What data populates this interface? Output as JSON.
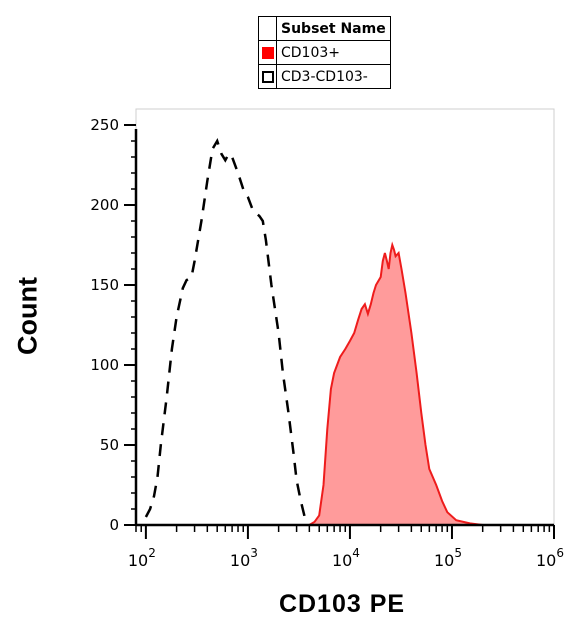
{
  "chart_data": {
    "type": "area",
    "xlabel": "CD103 PE",
    "ylabel": "Count",
    "x_scale": "log",
    "xlim": [
      80,
      1000000
    ],
    "ylim": [
      0,
      260
    ],
    "x_ticks": [
      {
        "value": 100,
        "base": "10",
        "exp": "2"
      },
      {
        "value": 1000,
        "base": "10",
        "exp": "3"
      },
      {
        "value": 10000,
        "base": "10",
        "exp": "4"
      },
      {
        "value": 100000,
        "base": "10",
        "exp": "5"
      },
      {
        "value": 1000000,
        "base": "10",
        "exp": "6"
      }
    ],
    "y_ticks": [
      0,
      50,
      100,
      150,
      200,
      250
    ],
    "grid": false,
    "legend": {
      "title": "Subset Name",
      "position": "top-center",
      "entries": [
        {
          "label": "CD103+",
          "style": "filled",
          "color": "#ff0000"
        },
        {
          "label": "CD3-CD103-",
          "style": "dashed-outline",
          "color": "#000000"
        }
      ]
    },
    "series": [
      {
        "name": "CD103+",
        "style": "filled",
        "line_color": "#ee1c1c",
        "fill_color": "#ff9b9b",
        "points": [
          [
            100,
            0
          ],
          [
            4000,
            0
          ],
          [
            4500,
            2
          ],
          [
            5000,
            6
          ],
          [
            5500,
            25
          ],
          [
            6000,
            60
          ],
          [
            6500,
            85
          ],
          [
            7000,
            95
          ],
          [
            8000,
            105
          ],
          [
            9000,
            110
          ],
          [
            10000,
            115
          ],
          [
            11000,
            120
          ],
          [
            12000,
            128
          ],
          [
            13000,
            135
          ],
          [
            14000,
            138
          ],
          [
            15000,
            132
          ],
          [
            16000,
            138
          ],
          [
            17000,
            145
          ],
          [
            18000,
            150
          ],
          [
            20000,
            155
          ],
          [
            21000,
            165
          ],
          [
            22000,
            170
          ],
          [
            23000,
            165
          ],
          [
            24000,
            160
          ],
          [
            25000,
            170
          ],
          [
            26000,
            175
          ],
          [
            27000,
            172
          ],
          [
            28000,
            168
          ],
          [
            30000,
            170
          ],
          [
            32000,
            160
          ],
          [
            35000,
            145
          ],
          [
            40000,
            120
          ],
          [
            45000,
            95
          ],
          [
            50000,
            70
          ],
          [
            55000,
            50
          ],
          [
            60000,
            35
          ],
          [
            70000,
            25
          ],
          [
            80000,
            15
          ],
          [
            90000,
            8
          ],
          [
            110000,
            3
          ],
          [
            150000,
            1
          ],
          [
            200000,
            0
          ],
          [
            1000000,
            0
          ]
        ]
      },
      {
        "name": "CD3-CD103-",
        "style": "dashed",
        "line_color": "#000000",
        "points": [
          [
            100,
            5
          ],
          [
            110,
            10
          ],
          [
            120,
            18
          ],
          [
            130,
            30
          ],
          [
            140,
            50
          ],
          [
            160,
            80
          ],
          [
            180,
            110
          ],
          [
            200,
            130
          ],
          [
            230,
            148
          ],
          [
            250,
            153
          ],
          [
            280,
            155
          ],
          [
            300,
            165
          ],
          [
            350,
            190
          ],
          [
            400,
            215
          ],
          [
            450,
            235
          ],
          [
            500,
            240
          ],
          [
            550,
            232
          ],
          [
            600,
            228
          ],
          [
            650,
            232
          ],
          [
            700,
            230
          ],
          [
            800,
            220
          ],
          [
            900,
            210
          ],
          [
            1000,
            205
          ],
          [
            1100,
            198
          ],
          [
            1200,
            195
          ],
          [
            1300,
            193
          ],
          [
            1400,
            190
          ],
          [
            1500,
            178
          ],
          [
            1700,
            150
          ],
          [
            2000,
            120
          ],
          [
            2200,
            95
          ],
          [
            2500,
            70
          ],
          [
            2800,
            45
          ],
          [
            3000,
            28
          ],
          [
            3300,
            15
          ],
          [
            3600,
            5
          ],
          [
            4000,
            1
          ]
        ]
      }
    ]
  }
}
